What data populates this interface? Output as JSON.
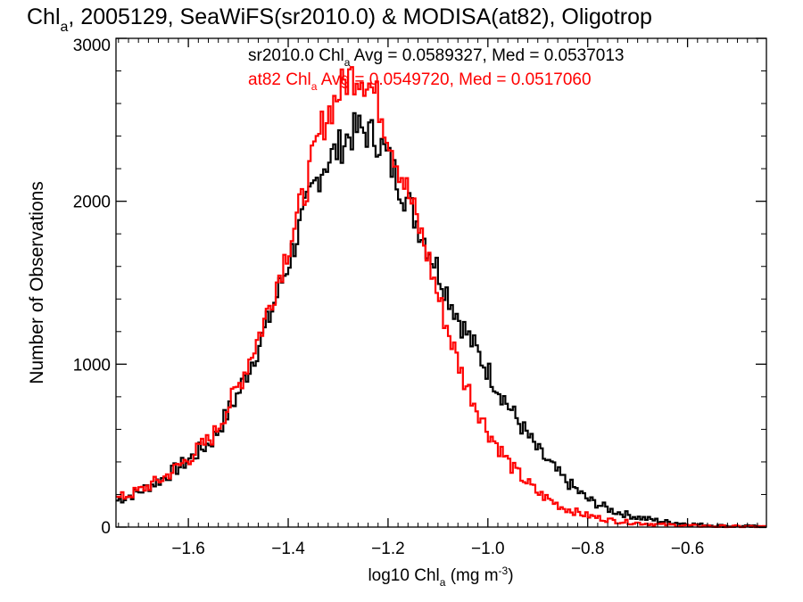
{
  "title": {
    "prefix": "Chl",
    "prefix_sub": "a",
    "rest": ", 2005129, SeaWiFS(sr2010.0) & MODISA(at82), Oligotrop"
  },
  "chart_data": {
    "type": "line",
    "style": "histogram-step",
    "xlabel": {
      "main": "log10 Chl",
      "sub": "a",
      "unit": " (mg m",
      "unit_sup": "-3",
      "unit_end": ")"
    },
    "ylabel": "Number of Observations",
    "xlim": [
      -1.745,
      -0.442
    ],
    "ylim": [
      0,
      3000
    ],
    "x_ticks": [
      -1.6,
      -1.4,
      -1.2,
      -1.0,
      -0.8,
      -0.6
    ],
    "x_tick_labels": [
      "−1.6",
      "−1.4",
      "−1.2",
      "−1.0",
      "−0.8",
      "−0.6"
    ],
    "y_ticks": [
      0,
      1000,
      2000,
      3000
    ],
    "y_tick_labels": [
      "0",
      "1000",
      "2000",
      "3000"
    ],
    "grid": false,
    "legend_placement": "top",
    "series": [
      {
        "name": "sr2010.0",
        "color": "#000000",
        "legend": {
          "pre": "sr2010.0 Chl",
          "sub": "a",
          "post": " Avg = 0.0589327, Med = 0.0537013"
        },
        "points": [
          [
            -1.745,
            160
          ],
          [
            -1.7,
            215
          ],
          [
            -1.65,
            300
          ],
          [
            -1.6,
            410
          ],
          [
            -1.55,
            540
          ],
          [
            -1.5,
            820
          ],
          [
            -1.45,
            1180
          ],
          [
            -1.4,
            1620
          ],
          [
            -1.37,
            1900
          ],
          [
            -1.35,
            2080
          ],
          [
            -1.33,
            2220
          ],
          [
            -1.3,
            2320
          ],
          [
            -1.28,
            2400
          ],
          [
            -1.26,
            2440
          ],
          [
            -1.24,
            2420
          ],
          [
            -1.22,
            2380
          ],
          [
            -1.2,
            2260
          ],
          [
            -1.18,
            2130
          ],
          [
            -1.15,
            1930
          ],
          [
            -1.12,
            1720
          ],
          [
            -1.1,
            1580
          ],
          [
            -1.08,
            1430
          ],
          [
            -1.05,
            1230
          ],
          [
            -1.0,
            960
          ],
          [
            -0.95,
            700
          ],
          [
            -0.9,
            470
          ],
          [
            -0.85,
            300
          ],
          [
            -0.8,
            170
          ],
          [
            -0.75,
            100
          ],
          [
            -0.7,
            60
          ],
          [
            -0.65,
            35
          ],
          [
            -0.6,
            20
          ],
          [
            -0.55,
            10
          ],
          [
            -0.5,
            5
          ],
          [
            -0.45,
            2
          ]
        ]
      },
      {
        "name": "at82",
        "color": "#ff0000",
        "legend": {
          "pre": "at82 Chl",
          "sub": "a",
          "post": " Avg = 0.0549720, Med = 0.0517060"
        },
        "points": [
          [
            -1.745,
            170
          ],
          [
            -1.7,
            220
          ],
          [
            -1.65,
            300
          ],
          [
            -1.6,
            420
          ],
          [
            -1.55,
            560
          ],
          [
            -1.5,
            860
          ],
          [
            -1.45,
            1240
          ],
          [
            -1.4,
            1720
          ],
          [
            -1.37,
            2020
          ],
          [
            -1.35,
            2260
          ],
          [
            -1.33,
            2480
          ],
          [
            -1.3,
            2660
          ],
          [
            -1.28,
            2760
          ],
          [
            -1.26,
            2790
          ],
          [
            -1.24,
            2740
          ],
          [
            -1.22,
            2610
          ],
          [
            -1.2,
            2420
          ],
          [
            -1.18,
            2230
          ],
          [
            -1.15,
            1960
          ],
          [
            -1.12,
            1660
          ],
          [
            -1.1,
            1420
          ],
          [
            -1.08,
            1210
          ],
          [
            -1.05,
            920
          ],
          [
            -1.0,
            590
          ],
          [
            -0.95,
            360
          ],
          [
            -0.9,
            210
          ],
          [
            -0.85,
            120
          ],
          [
            -0.8,
            70
          ],
          [
            -0.75,
            40
          ],
          [
            -0.7,
            25
          ],
          [
            -0.65,
            15
          ],
          [
            -0.6,
            9
          ],
          [
            -0.55,
            5
          ],
          [
            -0.5,
            3
          ],
          [
            -0.45,
            1
          ]
        ]
      }
    ]
  }
}
